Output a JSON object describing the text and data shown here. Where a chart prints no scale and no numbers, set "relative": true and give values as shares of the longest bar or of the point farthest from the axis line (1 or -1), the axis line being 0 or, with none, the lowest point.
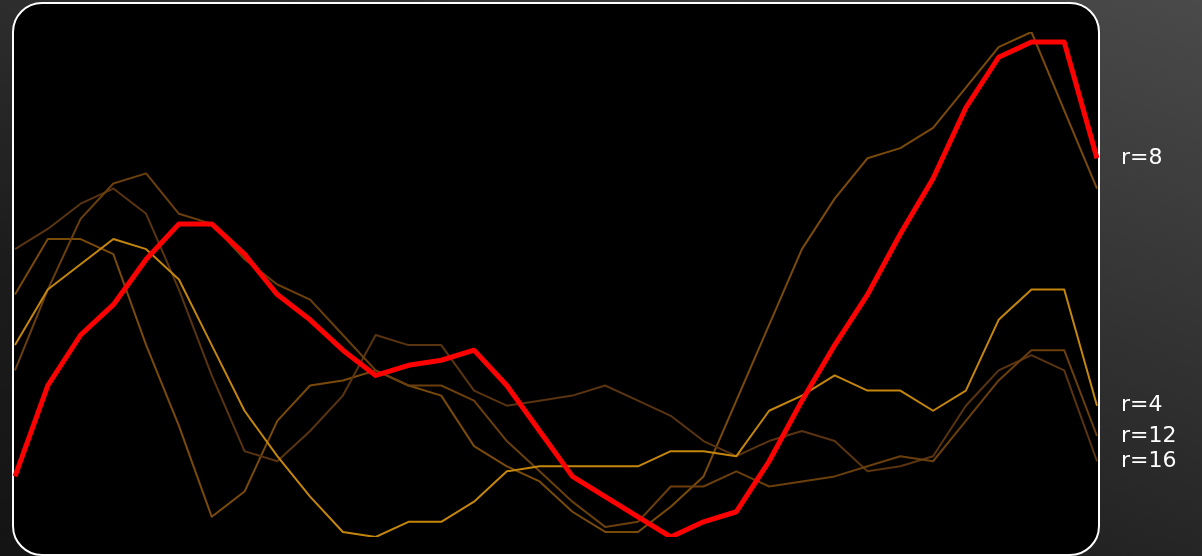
{
  "chart_data": {
    "type": "line",
    "relative": true,
    "marker": "none",
    "categories": [
      null,
      null,
      null,
      null,
      null,
      null,
      null,
      null,
      null,
      null,
      null,
      null,
      null,
      null,
      null,
      null,
      null,
      null,
      null,
      null,
      null,
      null,
      null,
      null,
      null,
      null,
      null,
      null,
      null,
      null,
      null,
      null,
      null,
      null
    ],
    "series": [
      {
        "name": "r=8",
        "color": "#ff0000",
        "values": [
          0.12,
          0.3,
          0.4,
          0.46,
          0.55,
          0.62,
          0.62,
          0.56,
          0.48,
          0.43,
          0.37,
          0.32,
          0.34,
          0.35,
          0.37,
          0.3,
          0.21,
          0.12,
          0.08,
          0.04,
          0.0,
          0.03,
          0.05,
          0.15,
          0.27,
          0.38,
          0.48,
          0.6,
          0.71,
          0.85,
          0.95,
          0.98,
          0.98,
          0.75
        ]
      },
      {
        "name": "r=4",
        "color": "#c4860c",
        "values": [
          0.38,
          0.49,
          0.54,
          0.59,
          0.57,
          0.51,
          0.38,
          0.25,
          0.16,
          0.08,
          0.01,
          0.0,
          0.03,
          0.03,
          0.07,
          0.13,
          0.14,
          0.14,
          0.14,
          0.14,
          0.17,
          0.17,
          0.16,
          0.25,
          0.28,
          0.32,
          0.29,
          0.29,
          0.25,
          0.29,
          0.43,
          0.49,
          0.49,
          0.26
        ]
      },
      {
        "name": "r=12",
        "color": "#6b3f0c",
        "values": [
          0.33,
          0.49,
          0.63,
          0.7,
          0.72,
          0.64,
          0.62,
          0.55,
          0.5,
          0.47,
          0.4,
          0.33,
          0.3,
          0.3,
          0.27,
          0.19,
          0.13,
          0.07,
          0.02,
          0.03,
          0.1,
          0.1,
          0.13,
          0.1,
          0.11,
          0.12,
          0.14,
          0.16,
          0.15,
          0.23,
          0.31,
          0.37,
          0.37,
          0.2
        ]
      },
      {
        "name": "r=16",
        "color": "#5a3410",
        "values": [
          0.57,
          0.61,
          0.66,
          0.69,
          0.64,
          0.49,
          0.32,
          0.17,
          0.15,
          0.21,
          0.28,
          0.4,
          0.38,
          0.38,
          0.29,
          0.26,
          0.27,
          0.28,
          0.3,
          0.27,
          0.24,
          0.19,
          0.16,
          0.19,
          0.21,
          0.19,
          0.13,
          0.14,
          0.16,
          0.26,
          0.33,
          0.36,
          0.33,
          0.15
        ]
      },
      {
        "color": "#7a4a0a",
        "values": [
          0.48,
          0.59,
          0.59,
          0.56,
          0.38,
          0.22,
          0.04,
          0.09,
          0.23,
          0.3,
          0.31,
          0.33,
          0.3,
          0.28,
          0.18,
          0.14,
          0.11,
          0.05,
          0.01,
          0.01,
          0.06,
          0.12,
          0.27,
          0.42,
          0.57,
          0.67,
          0.75,
          0.77,
          0.81,
          0.89,
          0.97,
          1.0,
          null,
          0.69
        ]
      }
    ]
  }
}
